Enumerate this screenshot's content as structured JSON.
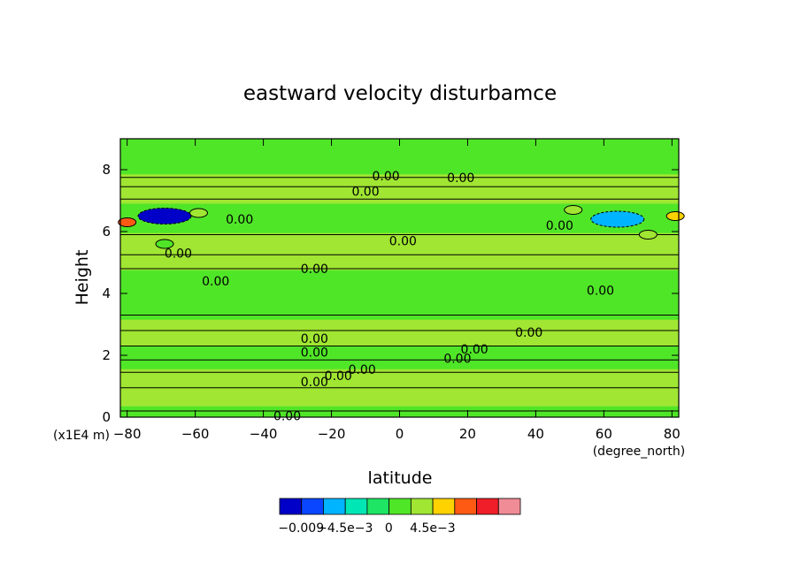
{
  "chart_data": {
    "type": "heatmap",
    "title": "eastward velocity disturbamce",
    "xlabel": "latitude",
    "ylabel": "Height",
    "x_unit": "(degree_north)",
    "y_unit": "(x1E4 m)",
    "xlim": [
      -82,
      82
    ],
    "ylim": [
      0,
      9
    ],
    "x_ticks": [
      -80,
      -60,
      -40,
      -20,
      0,
      20,
      40,
      60,
      80
    ],
    "y_ticks": [
      0,
      2,
      4,
      6,
      8
    ],
    "contour_line_label": "0.00",
    "contour_labels": [
      {
        "x": -4,
        "y": 7.8,
        "text": "0.00"
      },
      {
        "x": 18,
        "y": 7.75,
        "text": "0.00"
      },
      {
        "x": -10,
        "y": 7.3,
        "text": "0.00"
      },
      {
        "x": -47,
        "y": 6.4,
        "text": "0.00"
      },
      {
        "x": 47,
        "y": 6.2,
        "text": "0.00"
      },
      {
        "x": 1,
        "y": 5.7,
        "text": "0.00"
      },
      {
        "x": -65,
        "y": 5.3,
        "text": "0.00"
      },
      {
        "x": -25,
        "y": 4.8,
        "text": "0.00"
      },
      {
        "x": -54,
        "y": 4.4,
        "text": "0.00"
      },
      {
        "x": 59,
        "y": 4.1,
        "text": "0.00"
      },
      {
        "x": 38,
        "y": 2.75,
        "text": "0.00"
      },
      {
        "x": -25,
        "y": 2.55,
        "text": "0.00"
      },
      {
        "x": 22,
        "y": 2.2,
        "text": "0.00"
      },
      {
        "x": -25,
        "y": 2.1,
        "text": "0.00"
      },
      {
        "x": 17,
        "y": 1.9,
        "text": "0.00"
      },
      {
        "x": -11,
        "y": 1.55,
        "text": "0.00"
      },
      {
        "x": -18,
        "y": 1.35,
        "text": "0.00"
      },
      {
        "x": -25,
        "y": 1.15,
        "text": "0.00"
      },
      {
        "x": -33,
        "y": 0.05,
        "text": "0.00"
      }
    ],
    "anomalies": [
      {
        "x": -69,
        "y": 6.5,
        "level": -0.009
      },
      {
        "x": 64,
        "y": 6.4,
        "level": -0.006
      },
      {
        "x": -59,
        "y": 6.6,
        "level": 0.003
      },
      {
        "x": 51,
        "y": 6.7,
        "level": 0.003
      },
      {
        "x": -69,
        "y": 5.6,
        "level": 0.002
      },
      {
        "x": 73,
        "y": 5.9,
        "level": 0.003
      },
      {
        "x": -80,
        "y": 6.3,
        "level": 0.008
      },
      {
        "x": 81,
        "y": 6.5,
        "level": 0.005
      }
    ],
    "colorbar": {
      "colors": [
        "#0000c8",
        "#0a46ff",
        "#00b4ff",
        "#00e6b4",
        "#1ee664",
        "#50e628",
        "#a0e632",
        "#ffd200",
        "#ff5a14",
        "#f01e28",
        "#f08c96"
      ],
      "tick_labels": [
        "-0.009",
        "-4.5e-3",
        "0",
        "4.5e-3"
      ],
      "tick_values": [
        -0.009,
        -0.0045,
        0,
        0.0045
      ],
      "range": [
        -0.0112,
        0.0135
      ]
    },
    "grid": false,
    "legend": "bottom-center colorbar"
  }
}
